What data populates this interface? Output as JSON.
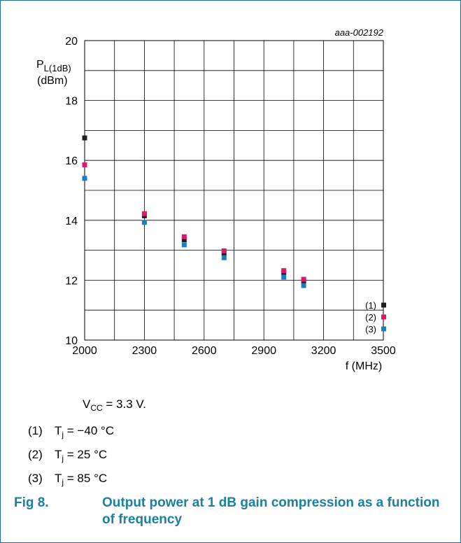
{
  "chart_data": {
    "type": "scatter",
    "id_label": "aaa-002192",
    "ylabel_main": "P",
    "ylabel_sub": "L(1dB)",
    "ylabel_unit": "(dBm)",
    "xlabel": "f (MHz)",
    "xlim": [
      2000,
      3500
    ],
    "ylim": [
      10,
      20
    ],
    "x_ticks": [
      2000,
      2300,
      2600,
      2900,
      3200,
      3500
    ],
    "y_ticks": [
      10,
      12,
      14,
      16,
      18,
      20
    ],
    "x_grid_step": 150,
    "y_grid_step": 1,
    "grid": true,
    "legend_position": "bottom-right",
    "series": [
      {
        "name": "(1)",
        "color": "#231f20",
        "x": [
          2000,
          2300,
          2500,
          2700,
          3000,
          3100
        ],
        "y": [
          16.75,
          14.15,
          13.35,
          12.9,
          12.25,
          11.97
        ]
      },
      {
        "name": "(2)",
        "color": "#e0186c",
        "x": [
          2000,
          2300,
          2500,
          2700,
          3000,
          3100
        ],
        "y": [
          15.85,
          14.22,
          13.45,
          12.98,
          12.32,
          12.03
        ]
      },
      {
        "name": "(3)",
        "color": "#1a7ec3",
        "x": [
          2000,
          2300,
          2500,
          2700,
          3000,
          3100
        ],
        "y": [
          15.4,
          13.93,
          13.18,
          12.75,
          12.1,
          11.82
        ]
      }
    ]
  },
  "conditions": {
    "vcc_main": "V",
    "vcc_sub": "CC",
    "vcc_value": " = 3.3 V.",
    "notes": [
      {
        "num": "(1)",
        "main": "T",
        "sub": "j",
        "value": " = −40 °C"
      },
      {
        "num": "(2)",
        "main": "T",
        "sub": "j",
        "value": " = 25 °C"
      },
      {
        "num": "(3)",
        "main": "T",
        "sub": "j",
        "value": " = 85 °C"
      }
    ]
  },
  "figure": {
    "number": "Fig 8.",
    "title": "Output power at 1 dB gain compression as a function of frequency"
  },
  "colors": {
    "accent": "#1a7fa0",
    "border": "#1f6f9a"
  }
}
